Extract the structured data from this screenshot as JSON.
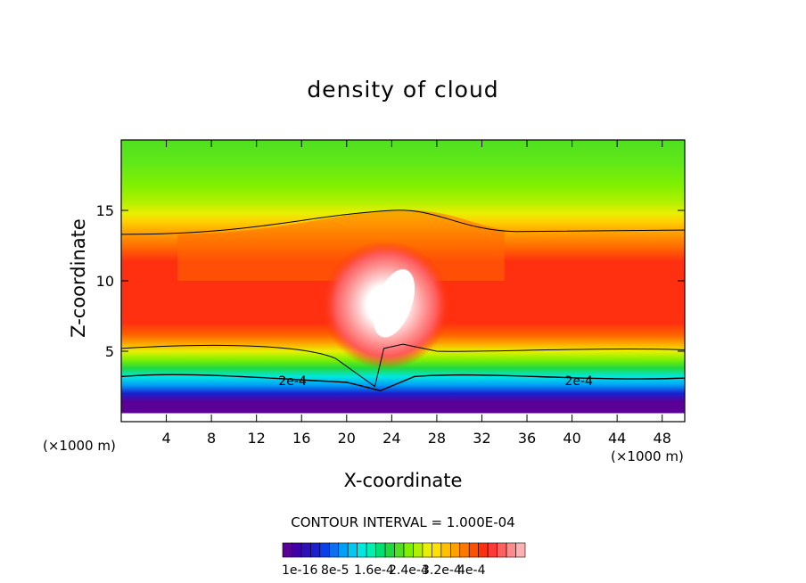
{
  "chart_data": {
    "type": "heatmap",
    "title": "density of cloud",
    "xlabel": "X-coordinate",
    "ylabel": "Z-coordinate",
    "x_unit_note_left": "(×1000 m)",
    "x_unit_note_right": "(×1000 m)",
    "xlim": [
      0,
      50
    ],
    "ylim": [
      0,
      20
    ],
    "x_ticks": [
      4,
      8,
      12,
      16,
      20,
      24,
      28,
      32,
      36,
      40,
      44,
      48
    ],
    "y_ticks": [
      5,
      10,
      15
    ],
    "contour_interval_text": "CONTOUR INTERVAL = 1.000E-04",
    "contour_labels": [
      {
        "text": "2e-4",
        "x": 15.2,
        "z": 2.9
      },
      {
        "text": "2e-4",
        "x": 40.6,
        "z": 2.9
      }
    ],
    "colorbar": {
      "colors": [
        "#5a0096",
        "#3f00a8",
        "#2f10b8",
        "#1a20d0",
        "#0a40e8",
        "#0a70f0",
        "#00a0f8",
        "#00c8f0",
        "#00e8e0",
        "#00f0b0",
        "#00e070",
        "#20d840",
        "#50e020",
        "#80f000",
        "#b0f000",
        "#e8f000",
        "#ffe000",
        "#ffc000",
        "#ffa000",
        "#ff7800",
        "#ff5000",
        "#ff3010",
        "#ff3838",
        "#ff6060",
        "#ff8c8c",
        "#ffb0b0"
      ],
      "labels": [
        "1e-16",
        "8e-5",
        "1.6e-4",
        "2.4e-4",
        "3.2e-4",
        "4e-4"
      ]
    }
  }
}
